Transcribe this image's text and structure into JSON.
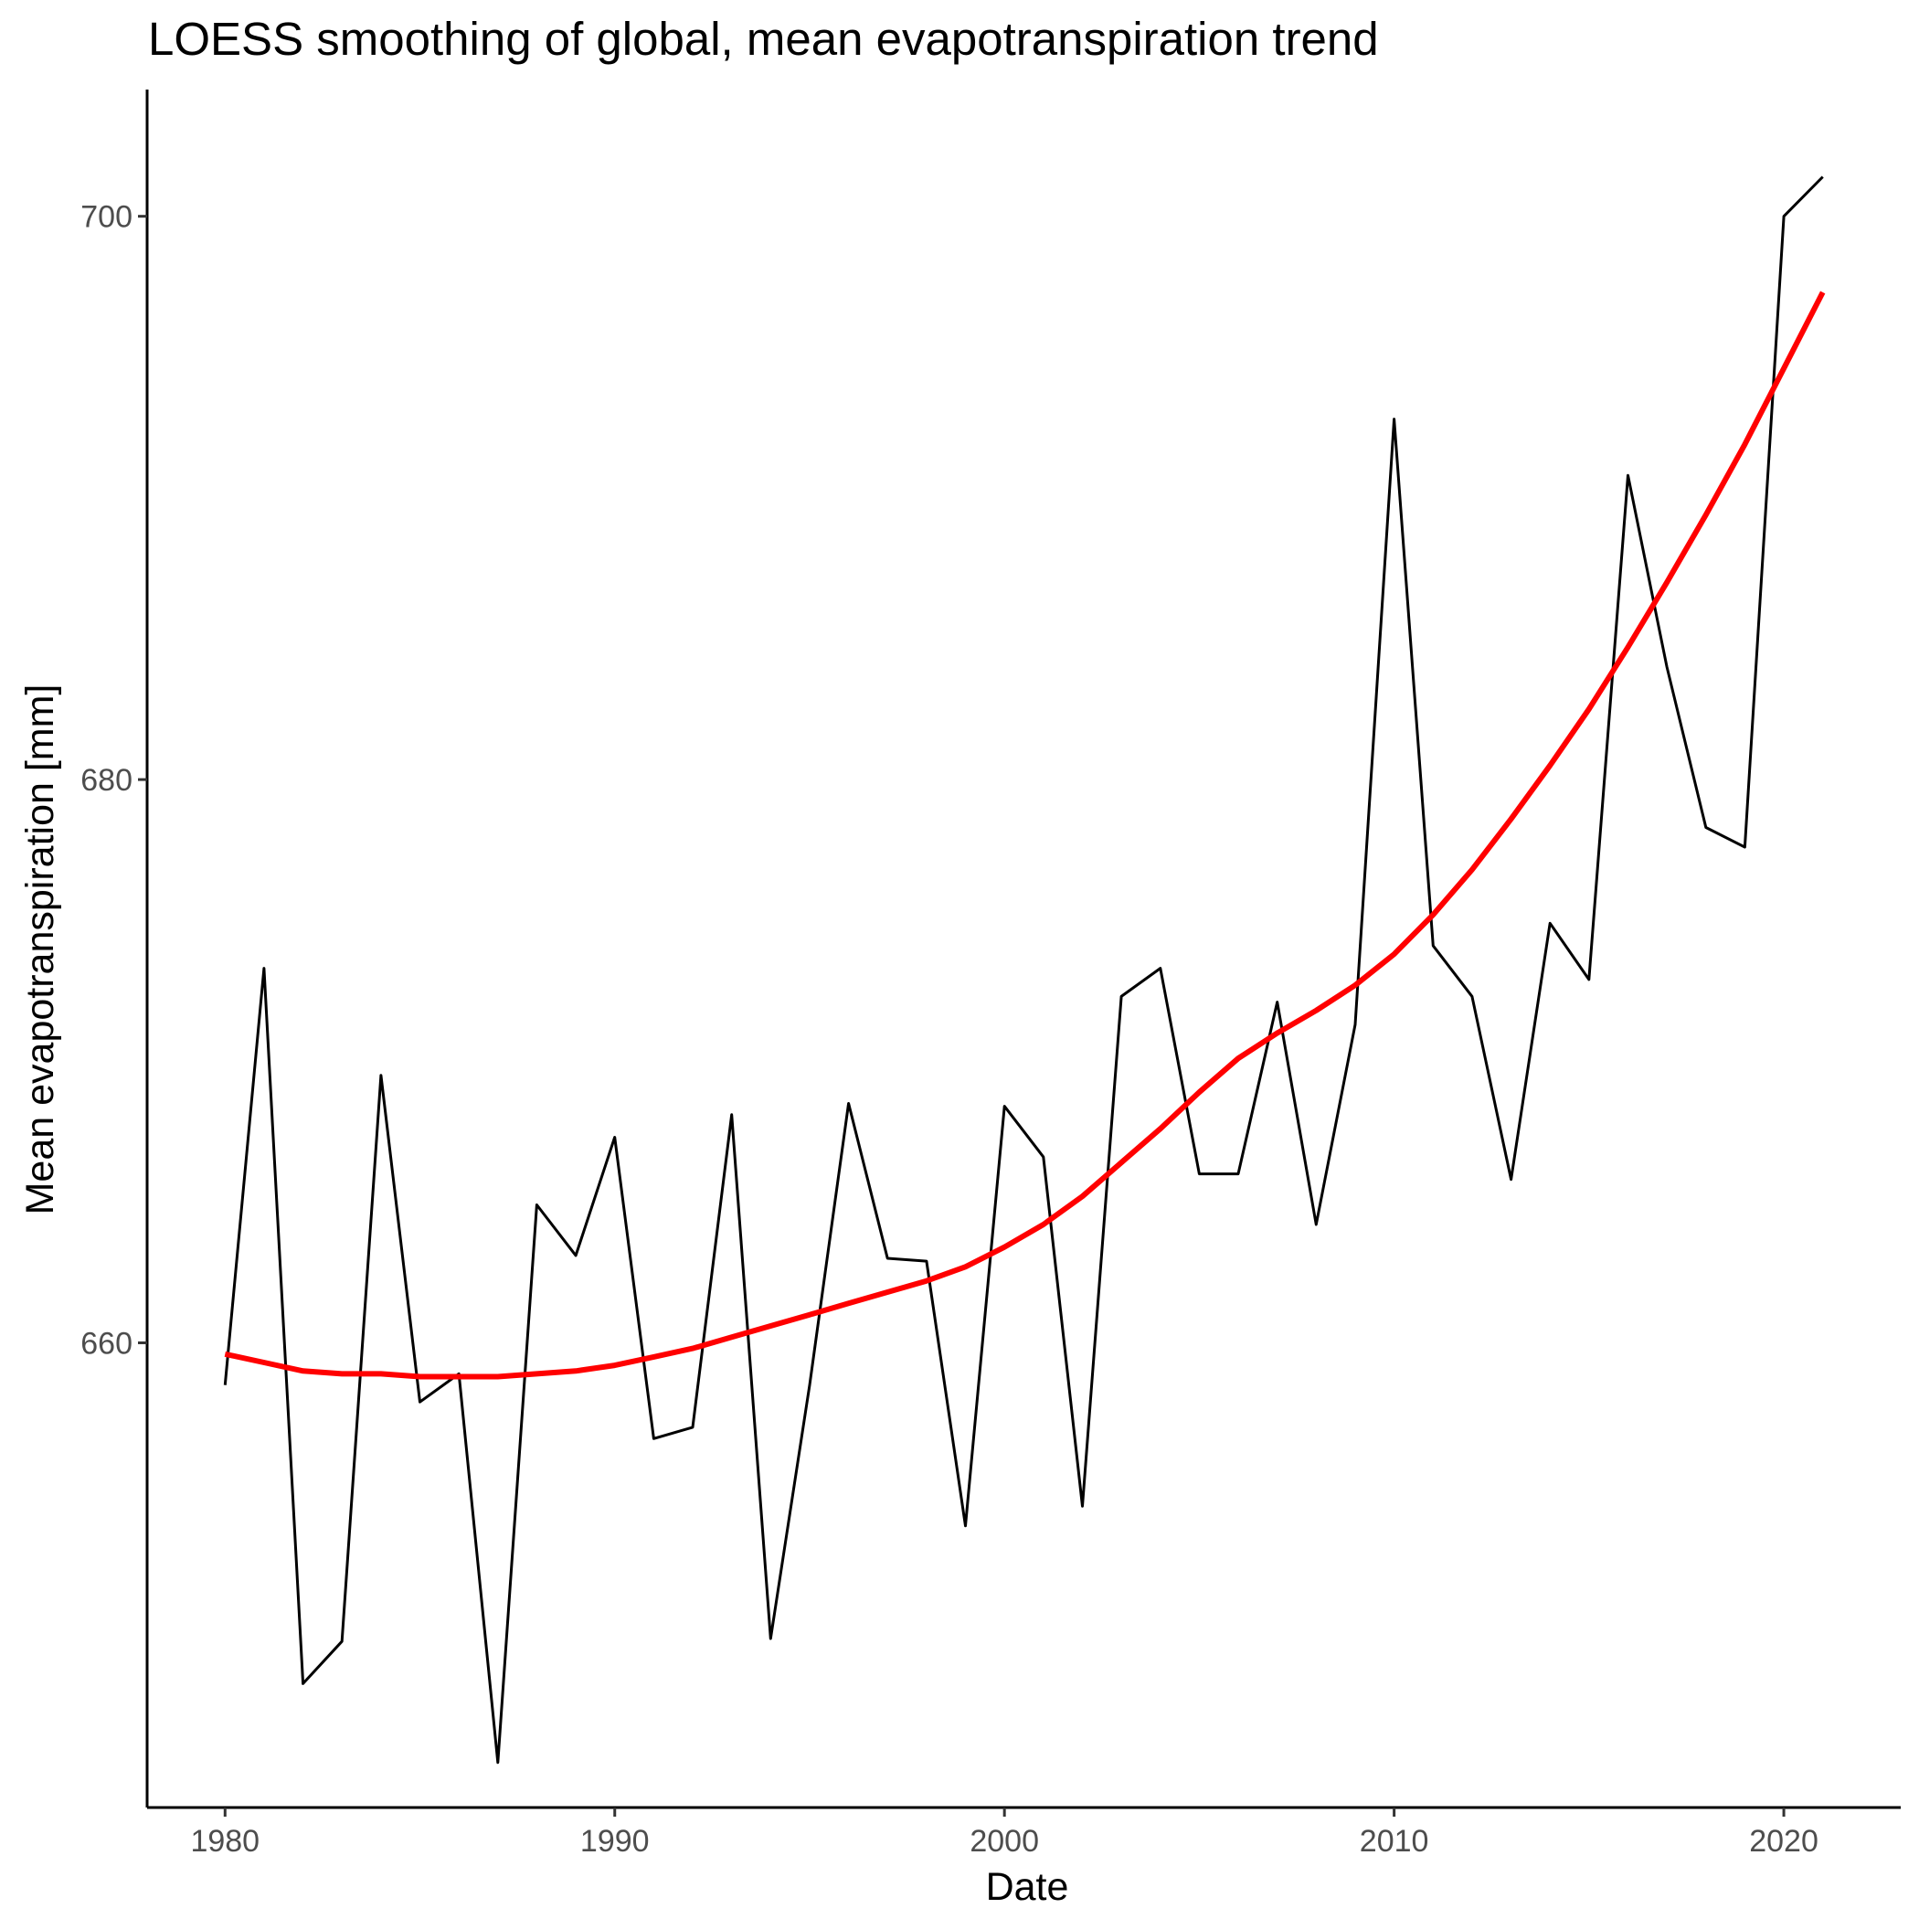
{
  "chart_data": {
    "type": "line",
    "title": "LOESS smoothing of global, mean evapotranspiration trend",
    "xlabel": "Date",
    "ylabel": "Mean evapotranspiration [mm]",
    "xlim": [
      1978,
      2023
    ],
    "ylim": [
      643.5,
      704.5
    ],
    "x_ticks": [
      1980,
      1990,
      2000,
      2010,
      2020
    ],
    "y_ticks": [
      660,
      680,
      700
    ],
    "grid": false,
    "legend": "none",
    "series": [
      {
        "color": "#000000",
        "x": [
          1980,
          1981,
          1982,
          1983,
          1984,
          1985,
          1986,
          1987,
          1988,
          1989,
          1990,
          1991,
          1992,
          1993,
          1994,
          1995,
          1996,
          1997,
          1998,
          1999,
          2000,
          2001,
          2002,
          2003,
          2004,
          2005,
          2006,
          2007,
          2008,
          2009,
          2010,
          2011,
          2012,
          2013,
          2014,
          2015,
          2016,
          2017,
          2018,
          2019,
          2020,
          2021
        ],
        "y": [
          658.5,
          673.3,
          647.9,
          649.4,
          669.5,
          657.9,
          658.9,
          645.1,
          664.9,
          663.1,
          667.3,
          656.6,
          657.0,
          668.1,
          649.5,
          658.5,
          668.5,
          663.0,
          662.9,
          653.5,
          668.4,
          666.6,
          654.2,
          672.3,
          673.3,
          666.0,
          666.0,
          672.1,
          664.2,
          671.3,
          692.8,
          674.1,
          672.3,
          665.8,
          674.9,
          672.9,
          690.8,
          684.0,
          678.3,
          677.6,
          700.0,
          701.4
        ]
      },
      {
        "color": "#ff0000",
        "x": [
          1980,
          1981,
          1982,
          1983,
          1984,
          1985,
          1986,
          1987,
          1988,
          1989,
          1990,
          1991,
          1992,
          1993,
          1994,
          1995,
          1996,
          1997,
          1998,
          1999,
          2000,
          2001,
          2002,
          2003,
          2004,
          2005,
          2006,
          2007,
          2008,
          2009,
          2010,
          2011,
          2012,
          2013,
          2014,
          2015,
          2016,
          2017,
          2018,
          2019,
          2020,
          2021
        ],
        "y": [
          659.6,
          659.3,
          659.0,
          658.9,
          658.9,
          658.8,
          658.8,
          658.8,
          658.9,
          659.0,
          659.2,
          659.5,
          659.8,
          660.2,
          660.6,
          661.0,
          661.4,
          661.8,
          662.2,
          662.7,
          663.4,
          664.2,
          665.2,
          666.4,
          667.6,
          668.9,
          670.1,
          671.0,
          671.8,
          672.7,
          673.8,
          675.2,
          676.8,
          678.6,
          680.5,
          682.5,
          684.7,
          687.0,
          689.4,
          691.9,
          694.6,
          697.3
        ]
      }
    ]
  }
}
